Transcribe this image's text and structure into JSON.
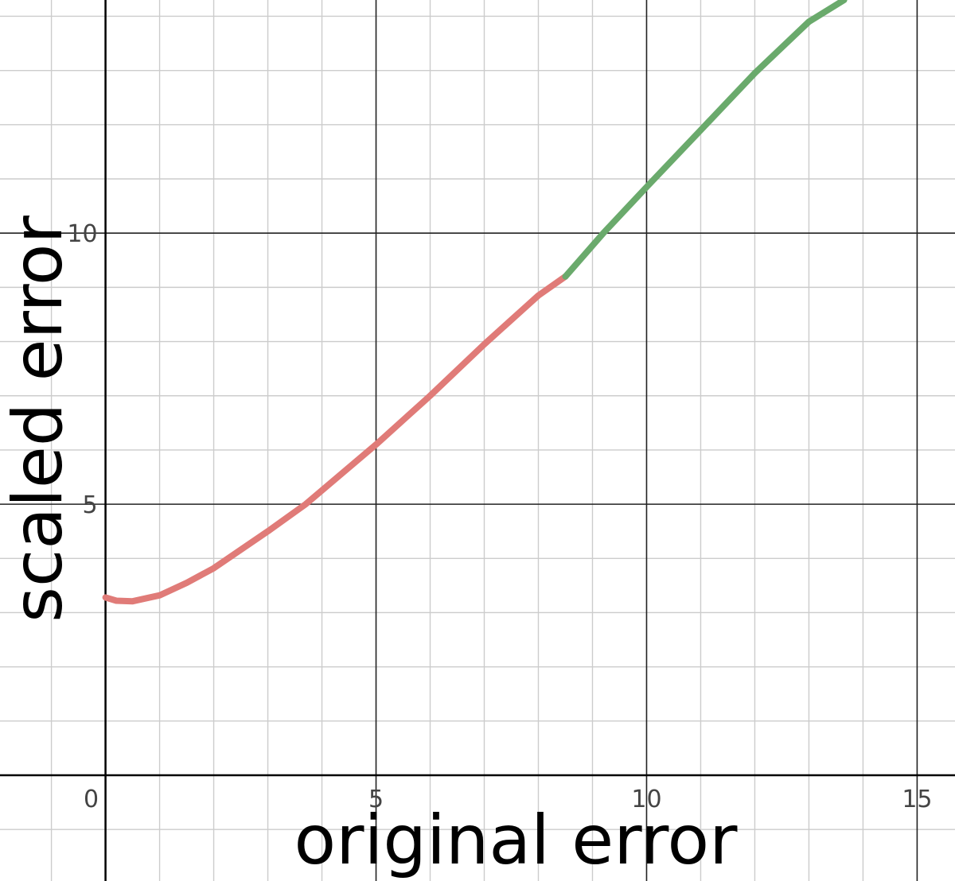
{
  "chart_data": {
    "type": "line",
    "title": "",
    "xlabel": "original error",
    "ylabel": "scaled error",
    "xlim": [
      -1.95,
      15.7
    ],
    "ylim": [
      -1.95,
      14.3
    ],
    "x_ticks": [
      0,
      5,
      10,
      15
    ],
    "x_tick_labels": [
      "0",
      "5",
      "10",
      "15"
    ],
    "y_ticks": [
      5,
      10
    ],
    "y_tick_labels": [
      "5",
      "10"
    ],
    "grid": true,
    "minor_step": 1,
    "major_step": 5,
    "legend": "none",
    "series": [
      {
        "name": "segment-red",
        "color": "#e07b78",
        "points": [
          [
            0,
            3.28
          ],
          [
            0.2,
            3.22
          ],
          [
            0.5,
            3.21
          ],
          [
            1,
            3.32
          ],
          [
            1.5,
            3.55
          ],
          [
            2,
            3.82
          ],
          [
            3,
            4.5
          ],
          [
            3.7,
            5.0
          ],
          [
            5,
            6.1
          ],
          [
            6,
            7.0
          ],
          [
            7,
            7.95
          ],
          [
            8,
            8.85
          ],
          [
            8.5,
            9.2
          ]
        ]
      },
      {
        "name": "segment-green",
        "color": "#6aaa6c",
        "points": [
          [
            8.5,
            9.2
          ],
          [
            9.2,
            10.0
          ],
          [
            10,
            10.85
          ],
          [
            11,
            11.9
          ],
          [
            12,
            12.95
          ],
          [
            13,
            13.9
          ],
          [
            13.65,
            14.3
          ]
        ]
      }
    ]
  }
}
